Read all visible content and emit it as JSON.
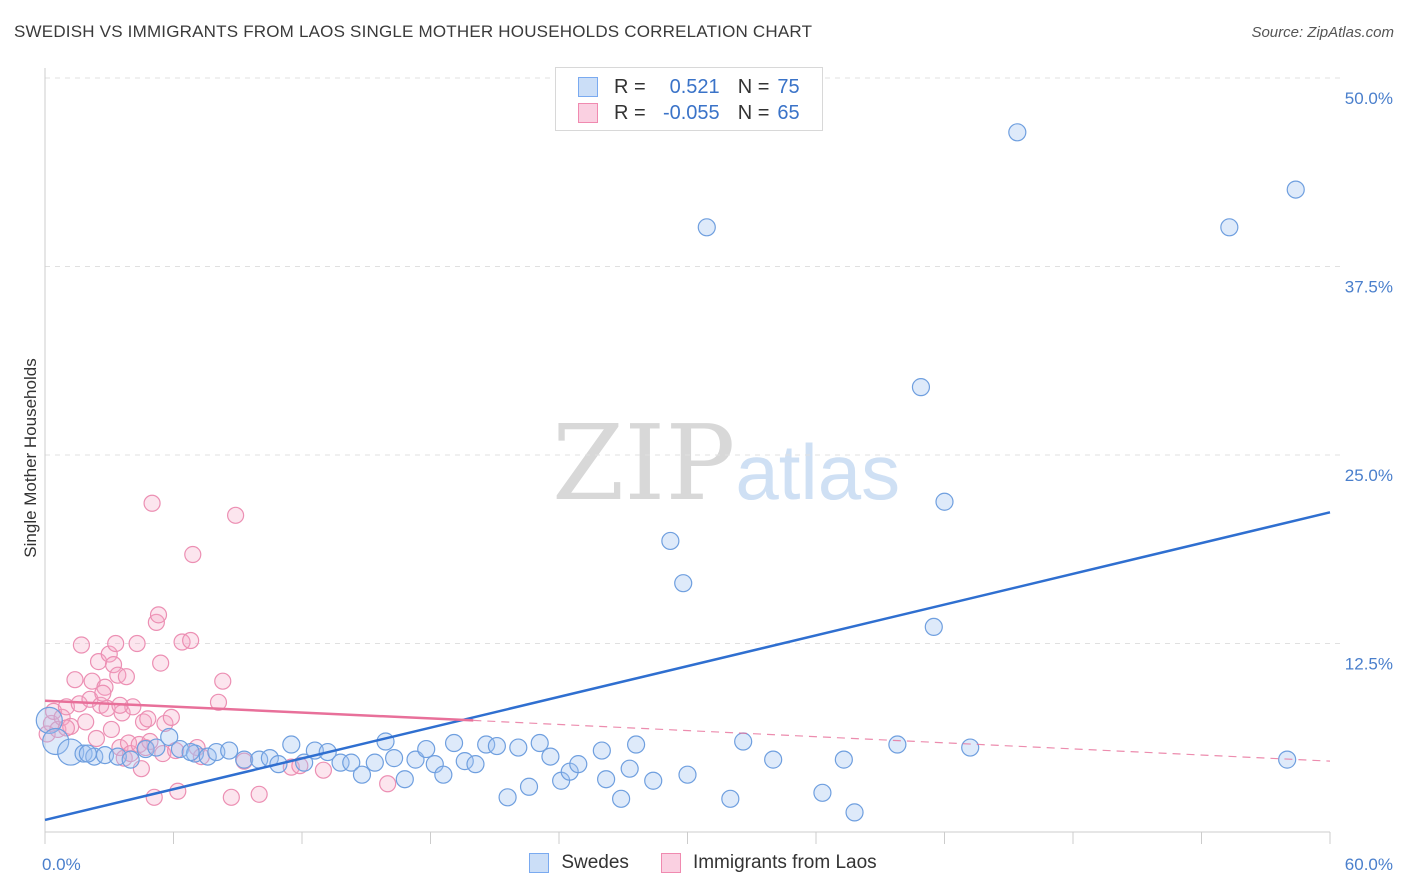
{
  "title": "SWEDISH VS IMMIGRANTS FROM LAOS SINGLE MOTHER HOUSEHOLDS CORRELATION CHART",
  "source": "Source: ZipAtlas.com",
  "watermark": {
    "zip": "ZIP",
    "atlas": "atlas"
  },
  "legend": {
    "rows": [
      {
        "r_label": "R =",
        "r_value": "0.521",
        "n_label": "N =",
        "n_value": "75",
        "color": "#7aaaf0"
      },
      {
        "r_label": "R =",
        "r_value": "-0.055",
        "n_label": "N =",
        "n_value": "65",
        "color": "#f08ab0"
      }
    ]
  },
  "bottom_legend": [
    {
      "label": "Swedes",
      "color": "#7aaaf0"
    },
    {
      "label": "Immigrants from Laos",
      "color": "#f08ab0"
    }
  ],
  "colors": {
    "swedes_fill": "rgba(160,195,240,0.35)",
    "swedes_stroke": "#6f9fdf",
    "swedes_line": "#2f6fd0",
    "laos_fill": "rgba(245,170,200,0.30)",
    "laos_stroke": "#ec8fb3",
    "laos_line": "#e8709a",
    "tick": "#4a7fcc",
    "grid": "#e0e0e0"
  },
  "chart_data": {
    "type": "scatter",
    "title": "SWEDISH VS IMMIGRANTS FROM LAOS SINGLE MOTHER HOUSEHOLDS CORRELATION CHART",
    "ylabel": "Single Mother Households",
    "xlabel": "",
    "xlim": [
      0,
      60
    ],
    "ylim": [
      0,
      50
    ],
    "x_tick_labels": [
      "0.0%",
      "60.0%"
    ],
    "y_ticks": [
      12.5,
      25.0,
      37.5,
      50.0
    ],
    "y_tick_labels": [
      "12.5%",
      "25.0%",
      "37.5%",
      "50.0%"
    ],
    "grid": true,
    "legend_position": "top-center",
    "series": [
      {
        "name": "Swedes",
        "r": 0.521,
        "n": 75,
        "trend": {
          "x": [
            0,
            60
          ],
          "y": [
            0.8,
            21.2
          ],
          "style": "solid"
        },
        "points": [
          [
            0.2,
            7.4
          ],
          [
            0.5,
            6.0
          ],
          [
            1.2,
            5.3
          ],
          [
            1.8,
            5.2
          ],
          [
            2.3,
            5.0
          ],
          [
            2.8,
            5.1
          ],
          [
            3.4,
            5.0
          ],
          [
            4.0,
            4.8
          ],
          [
            4.7,
            5.5
          ],
          [
            5.2,
            5.6
          ],
          [
            5.8,
            6.3
          ],
          [
            6.3,
            5.5
          ],
          [
            7.0,
            5.2
          ],
          [
            7.6,
            5.0
          ],
          [
            8.0,
            5.3
          ],
          [
            8.6,
            5.4
          ],
          [
            9.3,
            4.8
          ],
          [
            10.0,
            4.8
          ],
          [
            10.5,
            4.9
          ],
          [
            10.9,
            4.5
          ],
          [
            11.5,
            5.8
          ],
          [
            12.1,
            4.6
          ],
          [
            12.6,
            5.4
          ],
          [
            13.2,
            5.3
          ],
          [
            13.8,
            4.6
          ],
          [
            14.3,
            4.6
          ],
          [
            14.8,
            3.8
          ],
          [
            15.4,
            4.6
          ],
          [
            15.9,
            6.0
          ],
          [
            16.3,
            4.9
          ],
          [
            16.8,
            3.5
          ],
          [
            17.3,
            4.8
          ],
          [
            17.8,
            5.5
          ],
          [
            18.2,
            4.5
          ],
          [
            18.6,
            3.8
          ],
          [
            19.1,
            5.9
          ],
          [
            19.6,
            4.7
          ],
          [
            20.1,
            4.5
          ],
          [
            20.6,
            5.8
          ],
          [
            21.1,
            5.7
          ],
          [
            21.6,
            2.3
          ],
          [
            22.1,
            5.6
          ],
          [
            22.6,
            3.0
          ],
          [
            23.1,
            5.9
          ],
          [
            23.6,
            5.0
          ],
          [
            24.1,
            3.4
          ],
          [
            24.5,
            4.0
          ],
          [
            24.9,
            4.5
          ],
          [
            26.0,
            5.4
          ],
          [
            26.2,
            3.5
          ],
          [
            26.9,
            2.2
          ],
          [
            27.3,
            4.2
          ],
          [
            27.6,
            5.8
          ],
          [
            28.4,
            3.4
          ],
          [
            29.2,
            19.3
          ],
          [
            29.8,
            16.5
          ],
          [
            30.0,
            3.8
          ],
          [
            30.9,
            40.1
          ],
          [
            32.0,
            2.2
          ],
          [
            32.6,
            6.0
          ],
          [
            34.0,
            4.8
          ],
          [
            36.3,
            2.6
          ],
          [
            37.3,
            4.8
          ],
          [
            37.8,
            1.3
          ],
          [
            39.8,
            5.8
          ],
          [
            40.9,
            29.5
          ],
          [
            41.5,
            13.6
          ],
          [
            42.0,
            21.9
          ],
          [
            43.2,
            5.6
          ],
          [
            45.4,
            46.4
          ],
          [
            55.3,
            40.1
          ],
          [
            58.0,
            4.8
          ],
          [
            58.4,
            42.6
          ],
          [
            2.0,
            5.2
          ],
          [
            6.8,
            5.3
          ]
        ]
      },
      {
        "name": "Immigrants from Laos",
        "r": -0.055,
        "n": 65,
        "trend": {
          "x": [
            0,
            20
          ],
          "y": [
            8.7,
            7.4
          ],
          "style": "solid",
          "extension": {
            "x": [
              20,
              60
            ],
            "y": [
              7.4,
              4.7
            ],
            "style": "dashed"
          }
        },
        "points": [
          [
            0.1,
            6.5
          ],
          [
            0.3,
            7.2
          ],
          [
            0.4,
            8.0
          ],
          [
            0.6,
            6.8
          ],
          [
            0.8,
            7.6
          ],
          [
            1.0,
            8.3
          ],
          [
            1.2,
            7.0
          ],
          [
            1.4,
            10.1
          ],
          [
            1.6,
            8.5
          ],
          [
            1.7,
            12.4
          ],
          [
            1.9,
            7.3
          ],
          [
            2.1,
            8.8
          ],
          [
            2.2,
            10.0
          ],
          [
            2.4,
            6.2
          ],
          [
            2.5,
            11.3
          ],
          [
            2.6,
            8.4
          ],
          [
            2.8,
            9.6
          ],
          [
            2.9,
            8.2
          ],
          [
            3.0,
            11.8
          ],
          [
            3.1,
            6.8
          ],
          [
            3.2,
            11.1
          ],
          [
            3.3,
            12.5
          ],
          [
            3.4,
            10.4
          ],
          [
            3.5,
            5.6
          ],
          [
            3.6,
            7.9
          ],
          [
            3.7,
            4.9
          ],
          [
            3.8,
            10.3
          ],
          [
            3.9,
            5.9
          ],
          [
            4.0,
            5.2
          ],
          [
            4.1,
            8.3
          ],
          [
            4.3,
            12.5
          ],
          [
            4.4,
            5.8
          ],
          [
            4.5,
            4.2
          ],
          [
            4.6,
            7.3
          ],
          [
            4.7,
            5.6
          ],
          [
            4.8,
            7.5
          ],
          [
            4.9,
            6.0
          ],
          [
            5.0,
            21.8
          ],
          [
            5.1,
            2.3
          ],
          [
            5.2,
            13.9
          ],
          [
            5.3,
            14.4
          ],
          [
            5.4,
            11.2
          ],
          [
            5.5,
            5.2
          ],
          [
            5.6,
            7.2
          ],
          [
            5.9,
            7.6
          ],
          [
            6.1,
            5.4
          ],
          [
            6.2,
            2.7
          ],
          [
            6.4,
            12.6
          ],
          [
            6.8,
            12.7
          ],
          [
            6.9,
            18.4
          ],
          [
            7.1,
            5.6
          ],
          [
            7.3,
            5.0
          ],
          [
            8.1,
            8.6
          ],
          [
            8.3,
            10.0
          ],
          [
            8.7,
            2.3
          ],
          [
            8.9,
            21.0
          ],
          [
            9.3,
            4.7
          ],
          [
            10.0,
            2.5
          ],
          [
            11.5,
            4.3
          ],
          [
            11.9,
            4.4
          ],
          [
            13.0,
            4.1
          ],
          [
            16.0,
            3.2
          ],
          [
            3.5,
            8.4
          ],
          [
            1.0,
            6.9
          ],
          [
            2.7,
            9.2
          ]
        ]
      }
    ]
  }
}
